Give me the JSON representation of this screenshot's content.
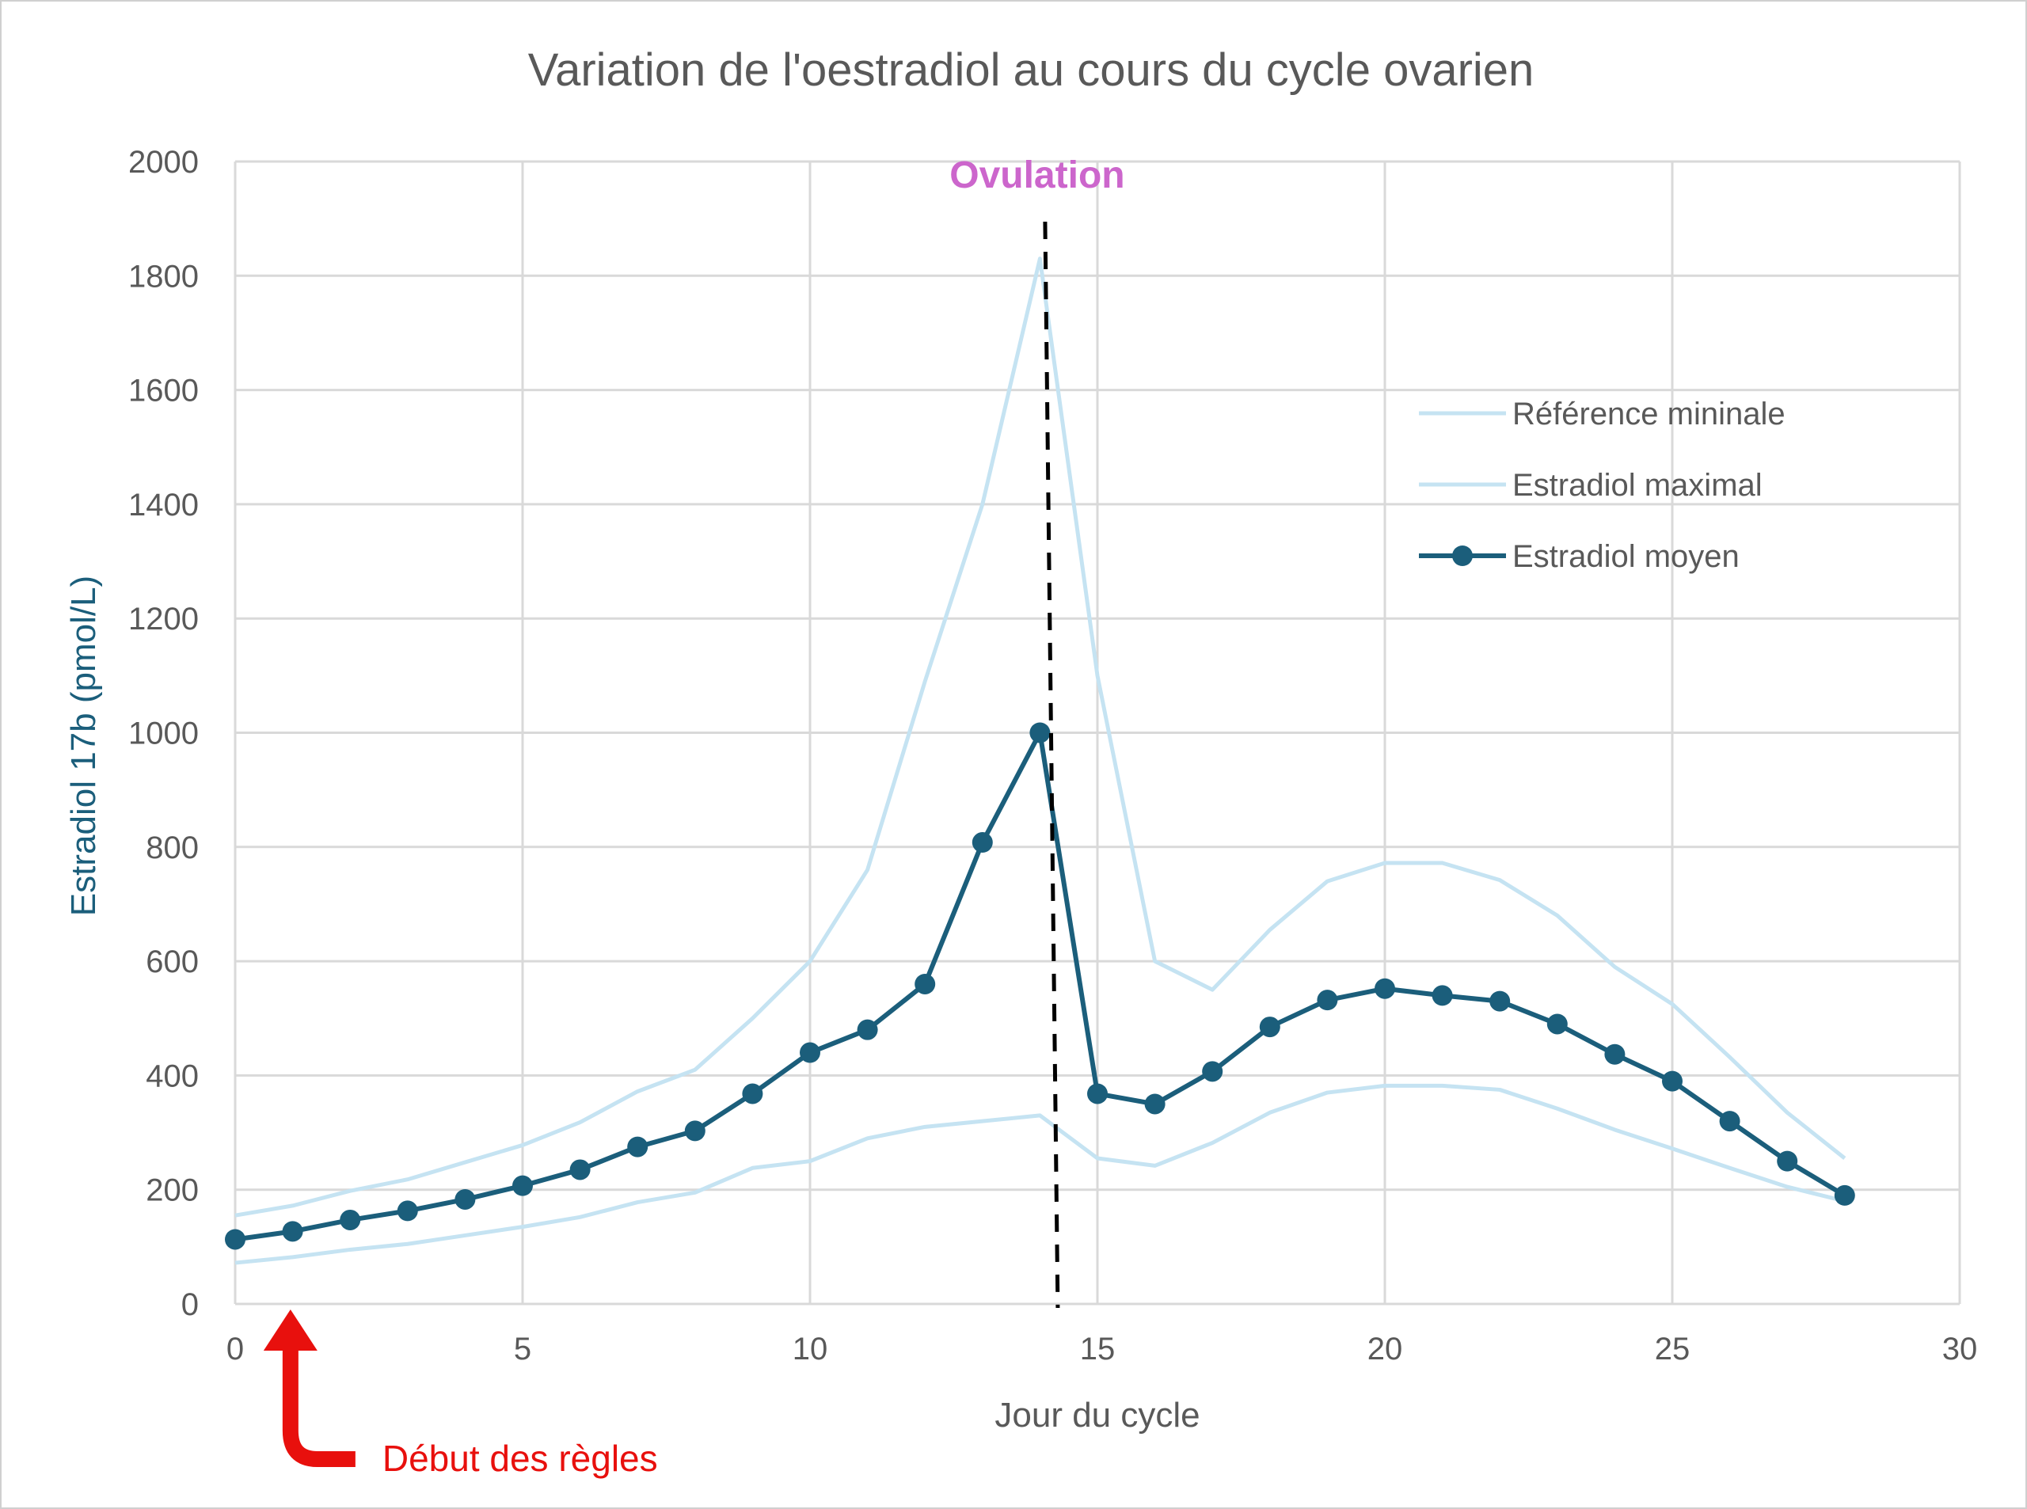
{
  "chart_data": {
    "type": "line",
    "title": "Variation de l'oestradiol au cours du cycle ovarien",
    "xlabel": "Jour du cycle",
    "ylabel": "Estradiol 17b (pmol/L)",
    "xlim": [
      0,
      30
    ],
    "ylim": [
      0,
      2000
    ],
    "x_ticks": [
      0,
      5,
      10,
      15,
      20,
      25,
      30
    ],
    "y_ticks": [
      0,
      200,
      400,
      600,
      800,
      1000,
      1200,
      1400,
      1600,
      1800,
      2000
    ],
    "grid": true,
    "legend_position": "right",
    "x": [
      0,
      1,
      2,
      3,
      4,
      5,
      6,
      7,
      8,
      9,
      10,
      11,
      12,
      13,
      14,
      15,
      16,
      17,
      18,
      19,
      20,
      21,
      22,
      23,
      24,
      25,
      26,
      27,
      28
    ],
    "series": [
      {
        "name": "Référence mininale",
        "color": "#c5e3f2",
        "markers": false,
        "values": [
          72,
          82,
          95,
          105,
          120,
          135,
          152,
          178,
          195,
          238,
          250,
          290,
          310,
          320,
          330,
          255,
          242,
          282,
          335,
          370,
          382,
          382,
          375,
          342,
          305,
          272,
          238,
          205,
          180
        ]
      },
      {
        "name": "Estradiol maximal",
        "color": "#c5e3f2",
        "markers": false,
        "values": [
          155,
          172,
          198,
          218,
          248,
          278,
          318,
          372,
          410,
          500,
          600,
          760,
          1090,
          1400,
          1830,
          1100,
          600,
          550,
          655,
          740,
          772,
          772,
          742,
          680,
          590,
          525,
          432,
          335,
          255
        ]
      },
      {
        "name": "Estradiol moyen",
        "color": "#1b5e7b",
        "markers": true,
        "values": [
          113,
          127,
          147,
          163,
          183,
          207,
          235,
          275,
          303,
          368,
          440,
          480,
          560,
          808,
          1000,
          368,
          350,
          407,
          485,
          532,
          552,
          540,
          530,
          490,
          437,
          390,
          320,
          250,
          190
        ]
      }
    ],
    "annotations": [
      {
        "kind": "vline",
        "x": 14.2,
        "label": "Ovulation",
        "color": "#cc66cc"
      },
      {
        "kind": "arrow",
        "x": 1.1,
        "label": "Début des règles",
        "color": "#e8100d"
      }
    ]
  }
}
